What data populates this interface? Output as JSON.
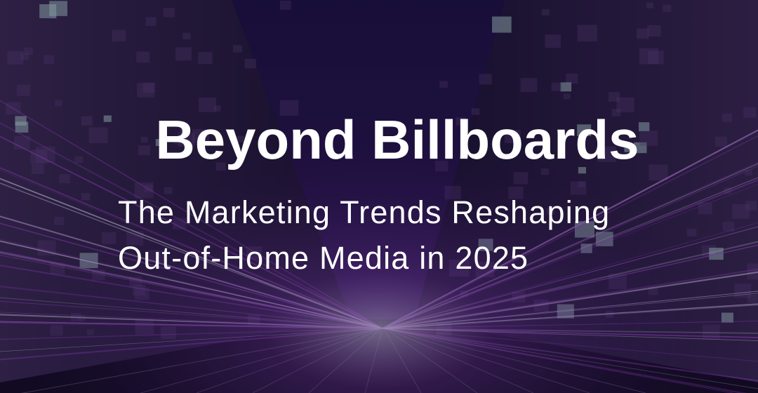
{
  "title": "Beyond Billboards",
  "subtitle_lines": [
    "The Marketing Trends Reshaping",
    "Out-of-Home Media in 2025"
  ]
}
